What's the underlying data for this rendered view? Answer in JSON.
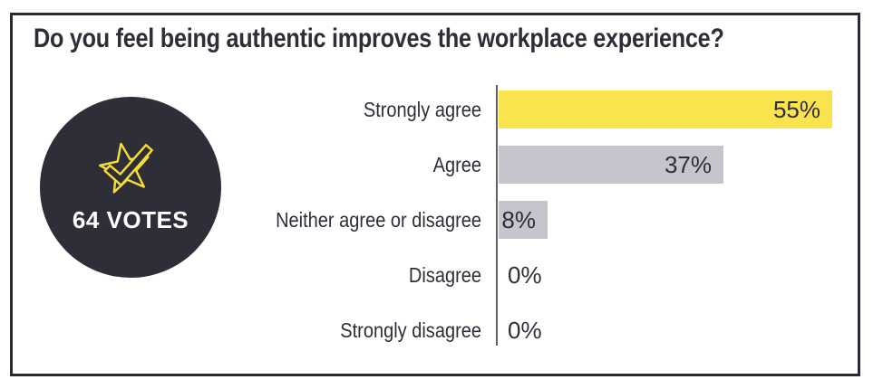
{
  "badge": {
    "votes_label": "64 VOTES",
    "icon": "star-check-icon"
  },
  "colors": {
    "dark": "#2e2e38",
    "frame_border": "#2a2a35",
    "accent_yellow": "#fae44e",
    "icon_yellow": "#f3dc35",
    "bar_gray": "#c5c5ce",
    "axis_gray": "#5f5f68",
    "text_on_badge": "#ffffff"
  },
  "chart_data": {
    "type": "bar",
    "orientation": "horizontal",
    "title": "Do you feel being authentic improves the workplace experience?",
    "categories": [
      "Strongly agree",
      "Agree",
      "Neither agree or disagree",
      "Disagree",
      "Strongly disagree"
    ],
    "values": [
      55,
      37,
      8,
      0,
      0
    ],
    "value_labels": [
      "55%",
      "37%",
      "8%",
      "0%",
      "0%"
    ],
    "bar_colors": [
      "#fae44e",
      "#c5c5ce",
      "#c5c5ce",
      null,
      null
    ],
    "xlabel": "",
    "ylabel": "",
    "xlim": [
      0,
      55
    ],
    "grid": false,
    "legend": "none",
    "total_votes": 64
  }
}
